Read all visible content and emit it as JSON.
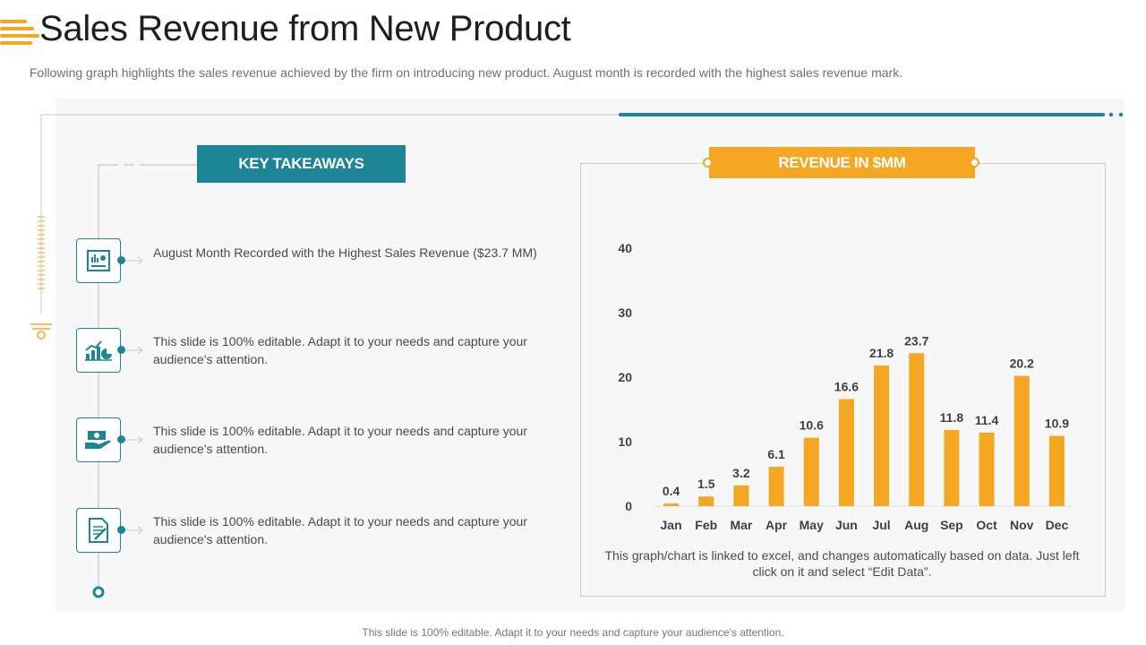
{
  "header": {
    "title": "Sales Revenue from New Product",
    "subtitle": "Following graph highlights the sales revenue achieved by the firm on introducing new product. August month is recorded with the highest sales revenue mark."
  },
  "takeaways": {
    "heading": "KEY TAKEAWAYS",
    "items": [
      {
        "icon": "dashboard-report-icon",
        "text": "August Month Recorded with the Highest Sales Revenue ($23.7 MM)"
      },
      {
        "icon": "growth-chart-icon",
        "text": "This slide is 100% editable. Adapt it to your needs and capture your audience's attention."
      },
      {
        "icon": "money-hand-icon",
        "text": "This slide is 100% editable. Adapt it to your needs and capture your audience's attention."
      },
      {
        "icon": "document-edit-icon",
        "text": "This slide is 100% editable. Adapt it to your needs and capture your audience's attention."
      }
    ]
  },
  "revenue_panel": {
    "heading": "REVENUE IN $MM",
    "note": "This graph/chart is linked to excel, and changes automatically based on data. Just left click on it and select “Edit Data”."
  },
  "footer": "This slide is 100% editable. Adapt it to your needs and capture your audience's attention.",
  "colors": {
    "teal": "#1e8596",
    "orange": "#f5a623",
    "bar": "#f5a623"
  },
  "chart_data": {
    "type": "bar",
    "title": "REVENUE IN $MM",
    "categories": [
      "Jan",
      "Feb",
      "Mar",
      "Apr",
      "May",
      "Jun",
      "Jul",
      "Aug",
      "Sep",
      "Oct",
      "Nov",
      "Dec"
    ],
    "values": [
      0.4,
      1.5,
      3.2,
      6.1,
      10.6,
      16.6,
      21.8,
      23.7,
      11.8,
      11.4,
      20.2,
      10.9
    ],
    "yticks": [
      0,
      10,
      20,
      30,
      40
    ],
    "ylim": [
      0,
      40
    ],
    "xlabel": "",
    "ylabel": "",
    "grid": false,
    "data_labels": true
  }
}
